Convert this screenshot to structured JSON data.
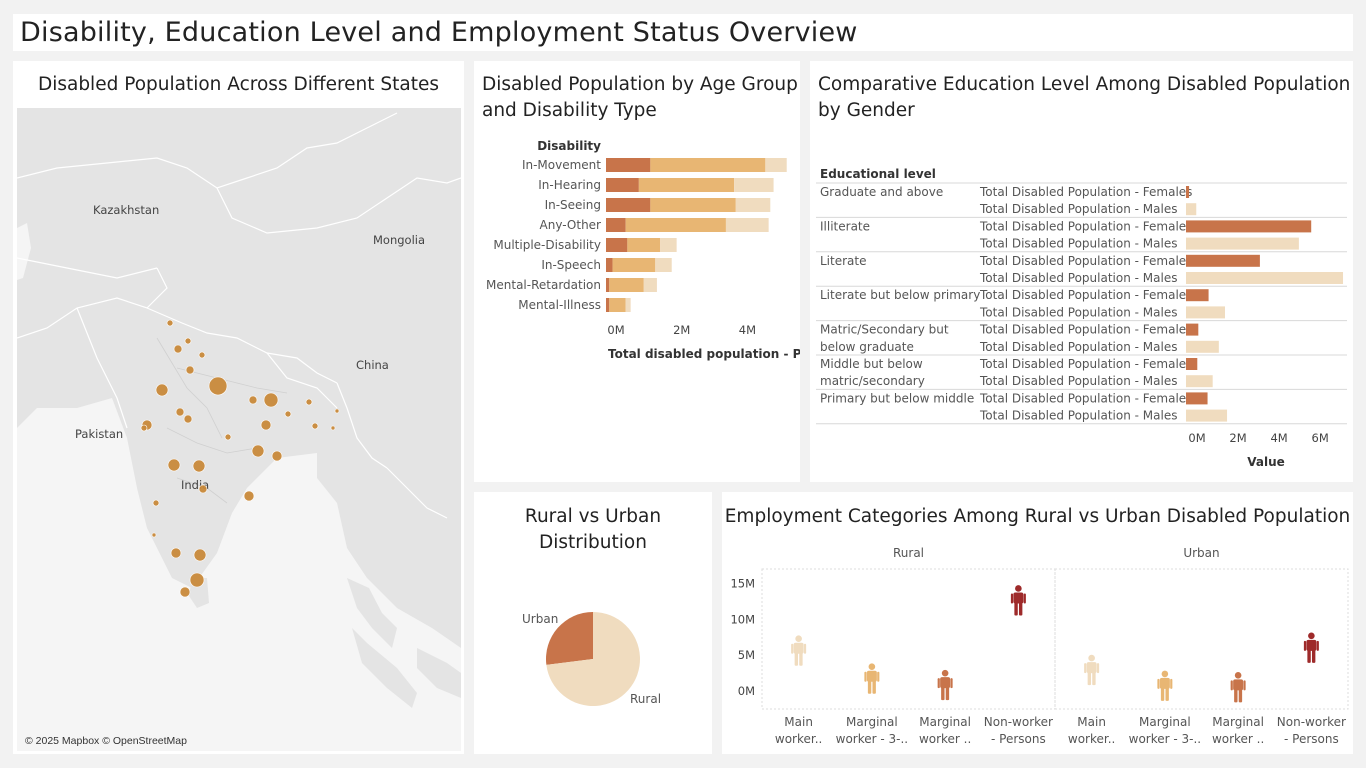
{
  "dashboard": {
    "title": "Disability, Education Level and Employment Status Overview"
  },
  "colors": {
    "dark": "#c8744a",
    "mid": "#e8b673",
    "light": "#f0dcbf",
    "maroon": "#9e2a2a",
    "dot": "#c8893a"
  },
  "map": {
    "title": "Disabled Population Across Different States",
    "labels": {
      "kazakhstan": "Kazakhstan",
      "mongolia": "Mongolia",
      "china": "China",
      "pakistan": "Pakistan",
      "india": "India"
    },
    "attribution": "© 2025 Mapbox © OpenStreetMap"
  },
  "age_chart": {
    "title_line1": "Disabled Population by Age Group",
    "title_line2": "and Disability Type",
    "header": "Disability",
    "xlabel": "Total disabled population - Pers..",
    "ticks": [
      "0M",
      "2M",
      "4M"
    ],
    "tick_values": [
      0,
      2,
      4
    ]
  },
  "edu_chart": {
    "title_line1": "Comparative Education Level Among Disabled Population",
    "title_line2": "by Gender",
    "header": "Educational level",
    "xlabel": "Value",
    "ticks": [
      "0M",
      "2M",
      "4M",
      "6M"
    ],
    "tick_values": [
      0,
      2,
      4,
      6
    ]
  },
  "pie_chart": {
    "title_line1": "Rural vs Urban",
    "title_line2": "Distribution",
    "urban_label": "Urban",
    "rural_label": "Rural"
  },
  "emp_chart": {
    "title": "Employment Categories Among Rural vs Urban Disabled Population",
    "ticks": [
      "15M",
      "10M",
      "5M",
      "0M"
    ],
    "tick_values": [
      15,
      10,
      5,
      0
    ]
  },
  "chart_data": [
    {
      "type": "bar",
      "title": "Disabled Population by Age Group and Disability Type",
      "xlabel": "Total disabled population - Pers..",
      "categories": [
        "In-Movement",
        "In-Hearing",
        "In-Seeing",
        "Any-Other",
        "Multiple-Disability",
        "In-Speech",
        "Mental-Retardation",
        "Mental-Illness"
      ],
      "stacked": true,
      "xlim": [
        0,
        5.6
      ],
      "series": [
        {
          "values": [
            1.35,
            1.0,
            1.35,
            0.6,
            0.65,
            0.2,
            0.1,
            0.1
          ]
        },
        {
          "values": [
            3.5,
            2.9,
            2.6,
            3.05,
            1.0,
            1.3,
            1.05,
            0.5
          ]
        },
        {
          "values": [
            0.65,
            1.2,
            1.05,
            1.3,
            0.5,
            0.5,
            0.4,
            0.15
          ]
        }
      ]
    },
    {
      "type": "bar",
      "title": "Comparative Education Level Among Disabled Population by Gender",
      "xlabel": "Value",
      "xlim": [
        0,
        7.6
      ],
      "groups": [
        {
          "label_lines": [
            "Graduate and above"
          ],
          "rows": [
            {
              "label": "Total Disabled Population - Females",
              "value": 0.15
            },
            {
              "label": "Total Disabled Population - Males",
              "value": 0.5
            }
          ]
        },
        {
          "label_lines": [
            "Illiterate"
          ],
          "rows": [
            {
              "label": "Total Disabled Population - Females",
              "value": 6.1
            },
            {
              "label": "Total Disabled Population - Males",
              "value": 5.5
            }
          ]
        },
        {
          "label_lines": [
            "Literate"
          ],
          "rows": [
            {
              "label": "Total Disabled Population - Females",
              "value": 3.6
            },
            {
              "label": "Total Disabled Population - Males",
              "value": 7.65
            }
          ]
        },
        {
          "label_lines": [
            "Literate but below primary"
          ],
          "rows": [
            {
              "label": "Total Disabled Population - Females",
              "value": 1.1
            },
            {
              "label": "Total Disabled Population - Males",
              "value": 1.9
            }
          ]
        },
        {
          "label_lines": [
            "Matric/Secondary but",
            "below graduate"
          ],
          "rows": [
            {
              "label": "Total Disabled Population - Females",
              "value": 0.6
            },
            {
              "label": "Total Disabled Population - Males",
              "value": 1.6
            }
          ]
        },
        {
          "label_lines": [
            "Middle but below",
            "matric/secondary"
          ],
          "rows": [
            {
              "label": "Total Disabled Population - Females",
              "value": 0.55
            },
            {
              "label": "Total Disabled Population - Males",
              "value": 1.3
            }
          ]
        },
        {
          "label_lines": [
            "Primary but below middle"
          ],
          "rows": [
            {
              "label": "Total Disabled Population - Females",
              "value": 1.05
            },
            {
              "label": "Total Disabled Population - Males",
              "value": 2.0
            }
          ]
        }
      ]
    },
    {
      "type": "pie",
      "title": "Rural vs Urban Distribution",
      "slices": [
        {
          "label": "Urban",
          "fraction": 0.27
        },
        {
          "label": "Rural",
          "fraction": 0.73
        }
      ]
    },
    {
      "type": "scatter",
      "title": "Employment Categories Among Rural vs Urban Disabled Population",
      "ylim": [
        -2.5,
        17
      ],
      "panels": [
        {
          "label": "Rural",
          "points": [
            {
              "category": "Main worker..",
              "label_lines": [
                "Main",
                "worker.."
              ],
              "value": 5.2
            },
            {
              "category": "Marginal worker - 3-..",
              "label_lines": [
                "Marginal",
                "worker - 3-.."
              ],
              "value": 1.3
            },
            {
              "category": "Marginal worker ..",
              "label_lines": [
                "Marginal",
                "worker .."
              ],
              "value": 0.4
            },
            {
              "category": "Non-worker - Persons",
              "label_lines": [
                "Non-worker",
                "- Persons"
              ],
              "value": 12.2
            }
          ]
        },
        {
          "label": "Urban",
          "points": [
            {
              "category": "Main worker..",
              "label_lines": [
                "Main",
                "worker.."
              ],
              "value": 2.5
            },
            {
              "category": "Marginal worker - 3-..",
              "label_lines": [
                "Marginal",
                "worker - 3-.."
              ],
              "value": 0.3
            },
            {
              "category": "Marginal worker ..",
              "label_lines": [
                "Marginal",
                "worker .."
              ],
              "value": 0.1
            },
            {
              "category": "Non-worker - Persons",
              "label_lines": [
                "Non-worker",
                "- Persons"
              ],
              "value": 5.6
            }
          ]
        }
      ]
    }
  ]
}
